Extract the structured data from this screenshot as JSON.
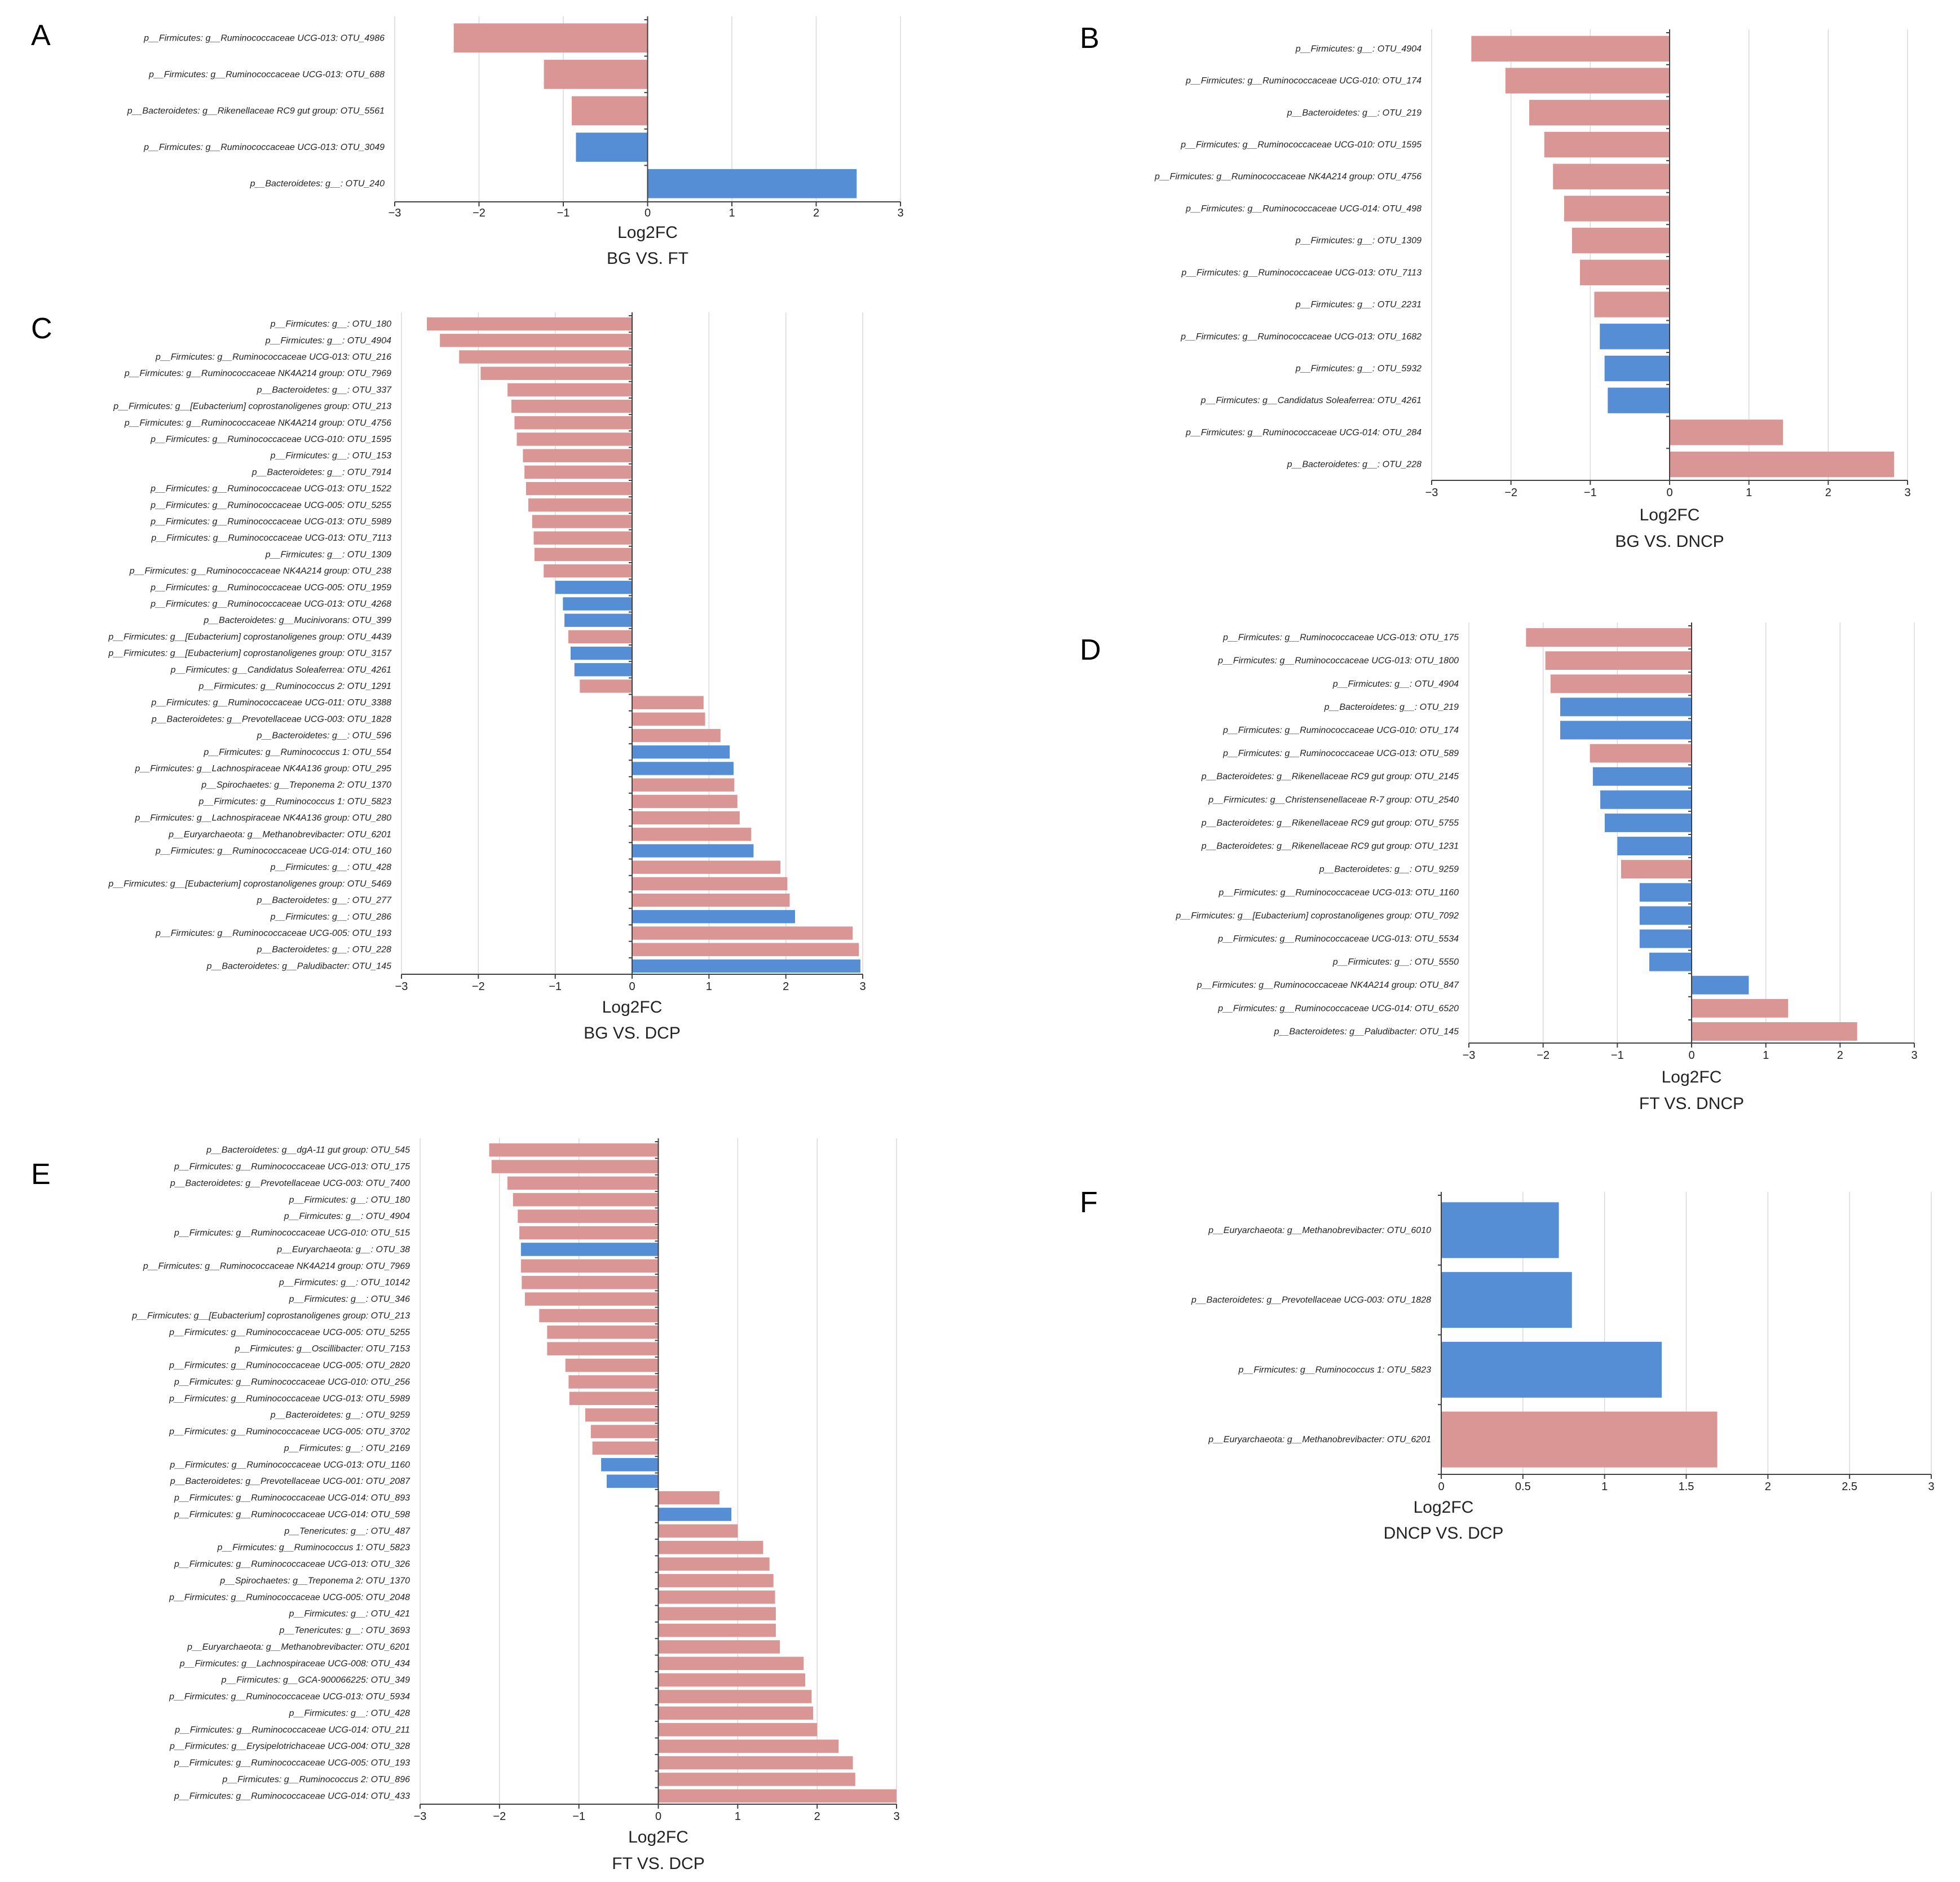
{
  "colors": {
    "up": "#d99694",
    "down": "#558ed5"
  },
  "chart_data": [
    {
      "type": "bar",
      "letter": "A",
      "title": "BG VS. FT",
      "xlabel": "Log2FC",
      "xlim": [
        -3,
        3
      ],
      "ticks": [
        -3,
        -2,
        -1,
        0,
        1,
        2,
        3
      ],
      "tick_labels": [
        "−3",
        "−2",
        "−1",
        "0",
        "1",
        "2",
        "3"
      ],
      "categories": [
        "p__Firmicutes: g__Ruminococcaceae UCG-013: OTU_4986",
        "p__Firmicutes: g__Ruminococcaceae UCG-013: OTU_688",
        "p__Bacteroidetes: g__Rikenellaceae RC9 gut group: OTU_5561",
        "p__Firmicutes: g__Ruminococcaceae UCG-013: OTU_3049",
        "p__Bacteroidetes: g__: OTU_240"
      ],
      "values": [
        -2.3,
        -1.23,
        -0.9,
        -0.85,
        2.48
      ],
      "color_groups": [
        "up",
        "up",
        "up",
        "down",
        "down"
      ]
    },
    {
      "type": "bar",
      "letter": "B",
      "title": "BG VS. DNCP",
      "xlabel": "Log2FC",
      "xlim": [
        -3,
        3
      ],
      "ticks": [
        -3,
        -2,
        -1,
        0,
        1,
        2,
        3
      ],
      "tick_labels": [
        "−3",
        "−2",
        "−1",
        "0",
        "1",
        "2",
        "3"
      ],
      "categories": [
        "p__Firmicutes: g__: OTU_4904",
        "p__Firmicutes: g__Ruminococcaceae UCG-010: OTU_174",
        "p__Bacteroidetes: g__: OTU_219",
        "p__Firmicutes: g__Ruminococcaceae UCG-010: OTU_1595",
        "p__Firmicutes: g__Ruminococcaceae NK4A214 group: OTU_4756",
        "p__Firmicutes: g__Ruminococcaceae UCG-014: OTU_498",
        "p__Firmicutes: g__: OTU_1309",
        "p__Firmicutes: g__Ruminococcaceae UCG-013: OTU_7113",
        "p__Firmicutes: g__: OTU_2231",
        "p__Firmicutes: g__Ruminococcaceae UCG-013: OTU_1682",
        "p__Firmicutes: g__: OTU_5932",
        "p__Firmicutes: g__Candidatus Soleaferrea: OTU_4261",
        "p__Firmicutes: g__Ruminococcaceae UCG-014: OTU_284",
        "p__Bacteroidetes: g__: OTU_228"
      ],
      "values": [
        -2.5,
        -2.07,
        -1.77,
        -1.58,
        -1.47,
        -1.33,
        -1.23,
        -1.13,
        -0.95,
        -0.88,
        -0.82,
        -0.78,
        1.43,
        2.83
      ],
      "color_groups": [
        "up",
        "up",
        "up",
        "up",
        "up",
        "up",
        "up",
        "up",
        "up",
        "down",
        "down",
        "down",
        "up",
        "up"
      ]
    },
    {
      "type": "bar",
      "letter": "C",
      "title": "BG VS. DCP",
      "xlabel": "Log2FC",
      "xlim": [
        -3,
        3
      ],
      "ticks": [
        -3,
        -2,
        -1,
        0,
        1,
        2,
        3
      ],
      "tick_labels": [
        "−3",
        "−2",
        "−1",
        "0",
        "1",
        "2",
        "3"
      ],
      "categories": [
        "p__Firmicutes: g__: OTU_180",
        "p__Firmicutes: g__: OTU_4904",
        "p__Firmicutes: g__Ruminococcaceae UCG-013: OTU_216",
        "p__Firmicutes: g__Ruminococcaceae NK4A214 group: OTU_7969",
        "p__Bacteroidetes: g__: OTU_337",
        "p__Firmicutes: g__[Eubacterium] coprostanoligenes group: OTU_213",
        "p__Firmicutes: g__Ruminococcaceae NK4A214 group: OTU_4756",
        "p__Firmicutes: g__Ruminococcaceae UCG-010: OTU_1595",
        "p__Firmicutes: g__: OTU_153",
        "p__Bacteroidetes: g__: OTU_7914",
        "p__Firmicutes: g__Ruminococcaceae UCG-013: OTU_1522",
        "p__Firmicutes: g__Ruminococcaceae UCG-005: OTU_5255",
        "p__Firmicutes: g__Ruminococcaceae UCG-013: OTU_5989",
        "p__Firmicutes: g__Ruminococcaceae UCG-013: OTU_7113",
        "p__Firmicutes: g__: OTU_1309",
        "p__Firmicutes: g__Ruminococcaceae NK4A214 group: OTU_238",
        "p__Firmicutes: g__Ruminococcaceae UCG-005: OTU_1959",
        "p__Firmicutes: g__Ruminococcaceae UCG-013: OTU_4268",
        "p__Bacteroidetes: g__Mucinivorans: OTU_399",
        "p__Firmicutes: g__[Eubacterium] coprostanoligenes group: OTU_4439",
        "p__Firmicutes: g__[Eubacterium] coprostanoligenes group: OTU_3157",
        "p__Firmicutes: g__Candidatus Soleaferrea: OTU_4261",
        "p__Firmicutes: g__Ruminococcus 2: OTU_1291",
        "p__Firmicutes: g__Ruminococcaceae UCG-011: OTU_3388",
        "p__Bacteroidetes: g__Prevotellaceae UCG-003: OTU_1828",
        "p__Bacteroidetes: g__: OTU_596",
        "p__Firmicutes: g__Ruminococcus 1: OTU_554",
        "p__Firmicutes: g__Lachnospiraceae NK4A136 group: OTU_295",
        "p__Spirochaetes: g__Treponema 2: OTU_1370",
        "p__Firmicutes: g__Ruminococcus 1: OTU_5823",
        "p__Firmicutes: g__Lachnospiraceae NK4A136 group: OTU_280",
        "p__Euryarchaeota: g__Methanobrevibacter: OTU_6201",
        "p__Firmicutes: g__Ruminococcaceae UCG-014: OTU_160",
        "p__Firmicutes: g__: OTU_428",
        "p__Firmicutes: g__[Eubacterium] coprostanoligenes group: OTU_5469",
        "p__Bacteroidetes: g__: OTU_277",
        "p__Firmicutes: g__: OTU_286",
        "p__Firmicutes: g__Ruminococcaceae UCG-005: OTU_193",
        "p__Bacteroidetes: g__: OTU_228",
        "p__Bacteroidetes: g__Paludibacter: OTU_145"
      ],
      "values": [
        -2.67,
        -2.5,
        -2.25,
        -1.97,
        -1.62,
        -1.57,
        -1.53,
        -1.5,
        -1.42,
        -1.4,
        -1.38,
        -1.35,
        -1.3,
        -1.28,
        -1.27,
        -1.15,
        -1.0,
        -0.9,
        -0.88,
        -0.83,
        -0.8,
        -0.75,
        -0.68,
        0.93,
        0.95,
        1.15,
        1.27,
        1.32,
        1.33,
        1.37,
        1.4,
        1.55,
        1.58,
        1.93,
        2.02,
        2.05,
        2.12,
        2.87,
        2.95,
        2.97
      ],
      "color_groups": [
        "up",
        "up",
        "up",
        "up",
        "up",
        "up",
        "up",
        "up",
        "up",
        "up",
        "up",
        "up",
        "up",
        "up",
        "up",
        "up",
        "down",
        "down",
        "down",
        "up",
        "down",
        "down",
        "up",
        "up",
        "up",
        "up",
        "down",
        "down",
        "up",
        "up",
        "up",
        "up",
        "down",
        "up",
        "up",
        "up",
        "down",
        "up",
        "up",
        "down"
      ]
    },
    {
      "type": "bar",
      "letter": "D",
      "title": "FT VS. DNCP",
      "xlabel": "Log2FC",
      "xlim": [
        -3,
        3
      ],
      "ticks": [
        -3,
        -2,
        -1,
        0,
        1,
        2,
        3
      ],
      "tick_labels": [
        "−3",
        "−2",
        "−1",
        "0",
        "1",
        "2",
        "3"
      ],
      "categories": [
        "p__Firmicutes: g__Ruminococcaceae UCG-013: OTU_175",
        "p__Firmicutes: g__Ruminococcaceae UCG-013: OTU_1800",
        "p__Firmicutes: g__: OTU_4904",
        "p__Bacteroidetes: g__: OTU_219",
        "p__Firmicutes: g__Ruminococcaceae UCG-010: OTU_174",
        "p__Firmicutes: g__Ruminococcaceae UCG-013: OTU_589",
        "p__Bacteroidetes: g__Rikenellaceae RC9 gut group: OTU_2145",
        "p__Firmicutes: g__Christensenellaceae R-7 group: OTU_2540",
        "p__Bacteroidetes: g__Rikenellaceae RC9 gut group: OTU_5755",
        "p__Bacteroidetes: g__Rikenellaceae RC9 gut group: OTU_1231",
        "p__Bacteroidetes: g__: OTU_9259",
        "p__Firmicutes: g__Ruminococcaceae UCG-013: OTU_1160",
        "p__Firmicutes: g__[Eubacterium] coprostanoligenes group: OTU_7092",
        "p__Firmicutes: g__Ruminococcaceae UCG-013: OTU_5534",
        "p__Firmicutes: g__: OTU_5550",
        "p__Firmicutes: g__Ruminococcaceae NK4A214 group: OTU_847",
        "p__Firmicutes: g__Ruminococcaceae UCG-014: OTU_6520",
        "p__Bacteroidetes: g__Paludibacter: OTU_145"
      ],
      "values": [
        -2.23,
        -1.97,
        -1.9,
        -1.77,
        -1.77,
        -1.37,
        -1.33,
        -1.23,
        -1.17,
        -1.0,
        -0.95,
        -0.7,
        -0.7,
        -0.7,
        -0.57,
        0.77,
        1.3,
        2.23
      ],
      "color_groups": [
        "up",
        "up",
        "up",
        "down",
        "down",
        "up",
        "down",
        "down",
        "down",
        "down",
        "up",
        "down",
        "down",
        "down",
        "down",
        "down",
        "up",
        "up"
      ]
    },
    {
      "type": "bar",
      "letter": "E",
      "title": "FT VS. DCP",
      "xlabel": "Log2FC",
      "xlim": [
        -3,
        3
      ],
      "ticks": [
        -3,
        -2,
        -1,
        0,
        1,
        2,
        3
      ],
      "tick_labels": [
        "−3",
        "−2",
        "−1",
        "0",
        "1",
        "2",
        "3"
      ],
      "categories": [
        "p__Bacteroidetes: g__dgA-11 gut group: OTU_545",
        "p__Firmicutes: g__Ruminococcaceae UCG-013: OTU_175",
        "p__Bacteroidetes: g__Prevotellaceae UCG-003: OTU_7400",
        "p__Firmicutes: g__: OTU_180",
        "p__Firmicutes: g__: OTU_4904",
        "p__Firmicutes: g__Ruminococcaceae UCG-010: OTU_515",
        "p__Euryarchaeota: g__: OTU_38",
        "p__Firmicutes: g__Ruminococcaceae NK4A214 group: OTU_7969",
        "p__Firmicutes: g__: OTU_10142",
        "p__Firmicutes: g__: OTU_346",
        "p__Firmicutes: g__[Eubacterium] coprostanoligenes group: OTU_213",
        "p__Firmicutes: g__Ruminococcaceae UCG-005: OTU_5255",
        "p__Firmicutes: g__Oscillibacter: OTU_7153",
        "p__Firmicutes: g__Ruminococcaceae UCG-005: OTU_2820",
        "p__Firmicutes: g__Ruminococcaceae UCG-010: OTU_256",
        "p__Firmicutes: g__Ruminococcaceae UCG-013: OTU_5989",
        "p__Bacteroidetes: g__: OTU_9259",
        "p__Firmicutes: g__Ruminococcaceae UCG-005: OTU_3702",
        "p__Firmicutes: g__: OTU_2169",
        "p__Firmicutes: g__Ruminococcaceae UCG-013: OTU_1160",
        "p__Bacteroidetes: g__Prevotellaceae UCG-001: OTU_2087",
        "p__Firmicutes: g__Ruminococcaceae UCG-014: OTU_893",
        "p__Firmicutes: g__Ruminococcaceae UCG-014: OTU_598",
        "p__Tenericutes: g__: OTU_487",
        "p__Firmicutes: g__Ruminococcus 1: OTU_5823",
        "p__Firmicutes: g__Ruminococcaceae UCG-013: OTU_326",
        "p__Spirochaetes: g__Treponema 2: OTU_1370",
        "p__Firmicutes: g__Ruminococcaceae UCG-005: OTU_2048",
        "p__Firmicutes: g__: OTU_421",
        "p__Tenericutes: g__: OTU_3693",
        "p__Euryarchaeota: g__Methanobrevibacter: OTU_6201",
        "p__Firmicutes: g__Lachnospiraceae UCG-008: OTU_434",
        "p__Firmicutes: g__GCA-900066225: OTU_349",
        "p__Firmicutes: g__Ruminococcaceae UCG-013: OTU_5934",
        "p__Firmicutes: g__: OTU_428",
        "p__Firmicutes: g__Ruminococcaceae UCG-014: OTU_211",
        "p__Firmicutes: g__Erysipelotrichaceae UCG-004: OTU_328",
        "p__Firmicutes: g__Ruminococcaceae UCG-005: OTU_193",
        "p__Firmicutes: g__Ruminococcus 2: OTU_896",
        "p__Firmicutes: g__Ruminococcaceae UCG-014: OTU_433"
      ],
      "values": [
        -2.13,
        -2.1,
        -1.9,
        -1.83,
        -1.77,
        -1.75,
        -1.73,
        -1.73,
        -1.72,
        -1.68,
        -1.5,
        -1.4,
        -1.4,
        -1.17,
        -1.13,
        -1.12,
        -0.92,
        -0.85,
        -0.83,
        -0.72,
        -0.65,
        0.77,
        0.92,
        1.0,
        1.32,
        1.4,
        1.45,
        1.47,
        1.48,
        1.48,
        1.53,
        1.83,
        1.85,
        1.93,
        1.95,
        2.0,
        2.27,
        2.45,
        2.48,
        3.0
      ],
      "color_groups": [
        "up",
        "up",
        "up",
        "up",
        "up",
        "up",
        "down",
        "up",
        "up",
        "up",
        "up",
        "up",
        "up",
        "up",
        "up",
        "up",
        "up",
        "up",
        "up",
        "down",
        "down",
        "up",
        "down",
        "up",
        "up",
        "up",
        "up",
        "up",
        "up",
        "up",
        "up",
        "up",
        "up",
        "up",
        "up",
        "up",
        "up",
        "up",
        "up",
        "up"
      ]
    },
    {
      "type": "bar",
      "letter": "F",
      "title": "DNCP VS. DCP",
      "xlabel": "Log2FC",
      "xlim": [
        0,
        3
      ],
      "ticks": [
        0,
        0.5,
        1,
        1.5,
        2,
        2.5,
        3
      ],
      "tick_labels": [
        "0",
        "0.5",
        "1",
        "1.5",
        "2",
        "2.5",
        "3"
      ],
      "categories": [
        "p__Euryarchaeota: g__Methanobrevibacter: OTU_6010",
        "p__Bacteroidetes: g__Prevotellaceae UCG-003: OTU_1828",
        "p__Firmicutes: g__Ruminococcus 1: OTU_5823",
        "p__Euryarchaeota: g__Methanobrevibacter: OTU_6201"
      ],
      "values": [
        0.72,
        0.8,
        1.35,
        1.69
      ],
      "color_groups": [
        "down",
        "down",
        "down",
        "up"
      ]
    }
  ]
}
